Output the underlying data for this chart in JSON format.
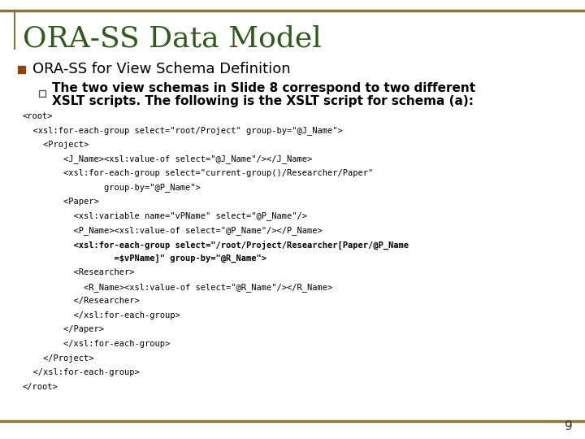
{
  "title": "ORA-SS Data Model",
  "title_color": "#2E5B1A",
  "bg_color": "#FFFFFF",
  "border_color": "#8B7536",
  "bullet1": "ORA-SS for View Schema Definition",
  "bullet1_color": "#000000",
  "bullet_marker_color": "#8B4513",
  "sub_bullet_line1": "The two view schemas in Slide 8 correspond to two different",
  "sub_bullet_line2": "XSLT scripts. The following is the XSLT script for schema (a):",
  "sub_bullet_color": "#000000",
  "code_lines": [
    {
      "text": "<root>",
      "bold": false
    },
    {
      "text": "  <xsl:for-each-group select=\"root/Project\" group-by=\"@J_Name\">",
      "bold": false
    },
    {
      "text": "    <Project>",
      "bold": false
    },
    {
      "text": "        <J_Name><xsl:value-of select=\"@J_Name\"/></J_Name>",
      "bold": false
    },
    {
      "text": "        <xsl:for-each-group select=\"current-group()/Researcher/Paper\"",
      "bold": false
    },
    {
      "text": "                group-by=\"@P_Name\">",
      "bold": false
    },
    {
      "text": "        <Paper>",
      "bold": false
    },
    {
      "text": "          <xsl:variable name=\"vPName\" select=\"@P_Name\"/>",
      "bold": false
    },
    {
      "text": "          <P_Name><xsl:value-of select=\"@P_Name\"/></P_Name>",
      "bold": false
    },
    {
      "text": "          <xsl:for-each-group select=\"/root/Project/Researcher[Paper/@P_Name",
      "bold": true
    },
    {
      "text": "                  =$vPName]\" group-by=\"@R_Name\">",
      "bold": true
    },
    {
      "text": "          <Researcher>",
      "bold": false
    },
    {
      "text": "            <R_Name><xsl:value-of select=\"@R_Name\"/></R_Name>",
      "bold": false
    },
    {
      "text": "          </Researcher>",
      "bold": false
    },
    {
      "text": "          </xsl:for-each-group>",
      "bold": false
    },
    {
      "text": "        </Paper>",
      "bold": false
    },
    {
      "text": "        </xsl:for-each-group>",
      "bold": false
    },
    {
      "text": "    </Project>",
      "bold": false
    },
    {
      "text": "  </xsl:for-each-group>",
      "bold": false
    },
    {
      "text": "</root>",
      "bold": false
    }
  ],
  "page_number": "9",
  "code_color": "#000000"
}
